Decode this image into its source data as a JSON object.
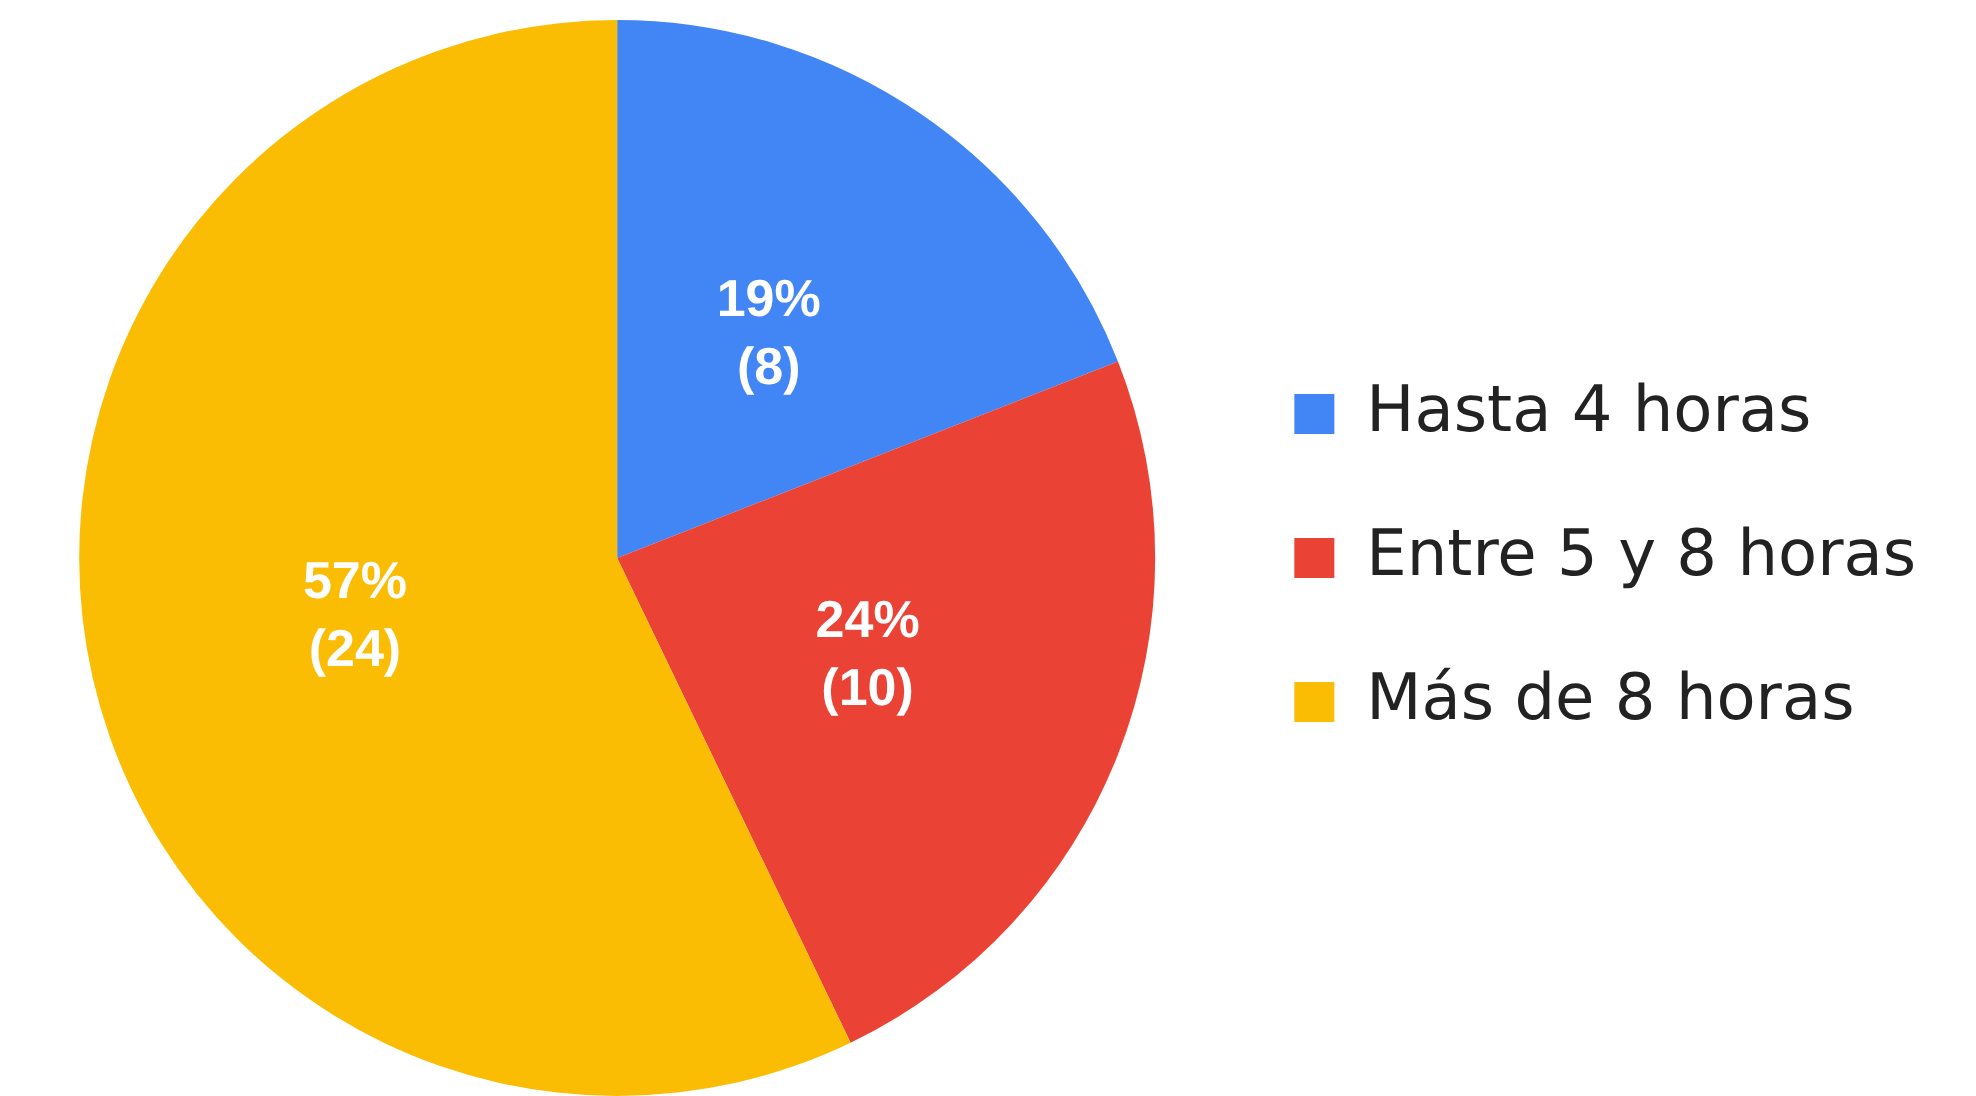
{
  "chart_data": {
    "type": "pie",
    "categories": [
      "Hasta 4 horas",
      "Entre 5 y 8 horas",
      "Más de 8 horas"
    ],
    "values": [
      8,
      10,
      24
    ],
    "colors": [
      "#4285f4",
      "#ea4335",
      "#fbbc04"
    ],
    "value_labels": [
      "19%\n(8)",
      "24%\n(10)",
      "57%\n(24)"
    ],
    "legend": "right"
  }
}
